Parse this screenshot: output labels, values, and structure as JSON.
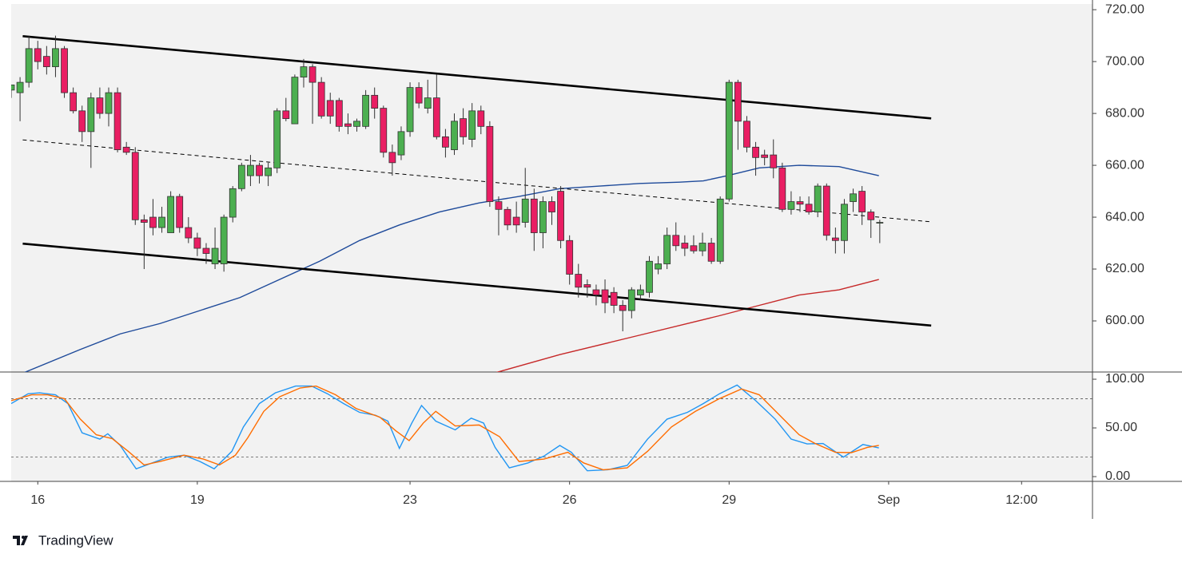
{
  "chart_data": [
    {
      "type": "candlestick",
      "open": [
        689,
        688,
        692,
        705,
        702,
        698,
        705,
        688,
        681,
        673,
        686,
        680,
        688,
        667,
        665,
        639,
        640,
        636,
        634,
        648,
        636,
        632,
        628,
        622,
        622,
        640,
        651,
        656,
        660,
        656,
        659,
        681,
        676,
        694,
        698,
        692,
        685,
        685,
        676,
        675,
        675,
        687,
        682,
        665,
        664,
        673,
        690,
        682,
        686,
        671,
        666,
        678,
        670,
        681,
        675,
        646,
        643,
        640,
        638,
        647,
        634,
        646,
        650,
        631,
        618,
        614,
        612,
        612,
        611,
        606,
        604,
        610,
        611,
        620,
        622,
        633,
        630,
        629,
        627,
        630,
        623,
        647,
        692,
        677,
        667,
        664,
        664,
        659,
        643,
        646,
        645,
        642,
        652,
        632,
        631,
        646,
        650,
        642,
        638
      ],
      "high": [
        691,
        694,
        710,
        708,
        706,
        710,
        706,
        690,
        683,
        688,
        690,
        690,
        690,
        669,
        667,
        641,
        647,
        644,
        650,
        649,
        640,
        634,
        630,
        636,
        641,
        652,
        661,
        664,
        661,
        661,
        682,
        686,
        695,
        701,
        699,
        694,
        688,
        686,
        680,
        678,
        689,
        690,
        683,
        668,
        675,
        692,
        692,
        693,
        695,
        674,
        680,
        682,
        684,
        683,
        677,
        648,
        644,
        646,
        659,
        651,
        648,
        648,
        652,
        633,
        622,
        616,
        614,
        616,
        613,
        608,
        613,
        614,
        625,
        625,
        636,
        638,
        633,
        633,
        634,
        632,
        648,
        693,
        693,
        679,
        669,
        666,
        670,
        661,
        650,
        648,
        648,
        653,
        653,
        636,
        647,
        651,
        652,
        643,
        639
      ],
      "low": [
        686,
        677,
        690,
        697,
        695,
        694,
        686,
        680,
        669,
        659,
        678,
        675,
        665,
        664,
        637,
        620,
        633,
        634,
        634,
        634,
        630,
        625,
        622,
        620,
        619,
        638,
        650,
        652,
        653,
        652,
        657,
        677,
        676,
        690,
        676,
        678,
        676,
        673,
        672,
        673,
        674,
        678,
        663,
        656,
        662,
        671,
        682,
        680,
        670,
        663,
        664,
        668,
        667,
        672,
        644,
        633,
        635,
        634,
        636,
        627,
        628,
        637,
        628,
        614,
        609,
        609,
        606,
        603,
        603,
        596,
        601,
        608,
        609,
        618,
        620,
        627,
        625,
        626,
        625,
        622,
        622,
        646,
        666,
        665,
        656,
        660,
        655,
        642,
        641,
        642,
        641,
        640,
        631,
        626,
        626,
        642,
        637,
        632,
        630
      ],
      "close": [
        691,
        692,
        705,
        700,
        698,
        705,
        688,
        681,
        673,
        686,
        680,
        688,
        666,
        665,
        639,
        638,
        636,
        640,
        648,
        636,
        632,
        628,
        626,
        628,
        640,
        651,
        660,
        660,
        656,
        659,
        681,
        678,
        694,
        698,
        692,
        679,
        679,
        675,
        675,
        677,
        687,
        682,
        665,
        661,
        673,
        690,
        684,
        686,
        671,
        667,
        677,
        671,
        681,
        675,
        646,
        643,
        637,
        637,
        647,
        634,
        646,
        642,
        631,
        618,
        613,
        613,
        610,
        607,
        606,
        604,
        612,
        612,
        623,
        622,
        633,
        629,
        628,
        627,
        630,
        623,
        647,
        692,
        677,
        667,
        663,
        663,
        659,
        643,
        646,
        645,
        642,
        652,
        633,
        631,
        645,
        649,
        642,
        639,
        638
      ],
      "up_color": "#4caf50",
      "down_color": "#e91e63",
      "xlim": [
        0,
        122
      ],
      "xticks": [
        {
          "value": 3,
          "label": "16"
        },
        {
          "value": 21,
          "label": "19"
        },
        {
          "value": 45,
          "label": "23"
        },
        {
          "value": 63,
          "label": "26"
        },
        {
          "value": 81,
          "label": "29"
        },
        {
          "value": 99,
          "label": "Sep"
        },
        {
          "value": 114,
          "label": "12:00"
        }
      ],
      "ylim": [
        580.3,
        722.2
      ],
      "yticks": [
        {
          "value": 600,
          "label": "600.00"
        },
        {
          "value": 620,
          "label": "620.00"
        },
        {
          "value": 640,
          "label": "640.00"
        },
        {
          "value": 660,
          "label": "660.00"
        },
        {
          "value": 680,
          "label": "680.00"
        },
        {
          "value": 700,
          "label": "700.00"
        },
        {
          "value": 720,
          "label": "720.00"
        }
      ],
      "moving_averages": [
        {
          "color": "#1e4a9a",
          "x": [
            1.4,
            7.8,
            12.3,
            16.8,
            21.3,
            25.8,
            30.3,
            34.8,
            39.3,
            43.8,
            48.3,
            52.8,
            57.3,
            61.9,
            66.4,
            70.9,
            75.4,
            78.1,
            80.8,
            84.4,
            88.9,
            93.4,
            97.9
          ],
          "values": [
            580,
            589,
            595,
            599,
            604,
            609,
            616,
            623,
            631,
            637,
            642,
            645.5,
            648,
            651,
            652,
            653,
            653.5,
            654,
            656,
            659,
            660,
            659.5,
            656
          ]
        },
        {
          "color": "#c62828",
          "x": [
            54.6,
            61.9,
            70.9,
            79.9,
            84.4,
            88.9,
            93.4,
            97.9
          ],
          "values": [
            580,
            587,
            594.5,
            602,
            606,
            610,
            612,
            616
          ]
        }
      ],
      "trendlines": [
        {
          "color": "#000000",
          "dashed": false,
          "x": [
            1.3,
            103.8
          ],
          "values": [
            709.8,
            678.1
          ]
        },
        {
          "color": "#000000",
          "dashed": true,
          "x": [
            1.3,
            103.8
          ],
          "values": [
            669.8,
            638.2
          ]
        },
        {
          "color": "#000000",
          "dashed": false,
          "x": [
            1.3,
            103.8
          ],
          "values": [
            629.8,
            598.2
          ]
        }
      ]
    },
    {
      "type": "line",
      "xlim": [
        0,
        122
      ],
      "ylim": [
        -4.9,
        107.4
      ],
      "yticks": [
        {
          "value": 0,
          "label": "0.00"
        },
        {
          "value": 50,
          "label": "50.00"
        },
        {
          "value": 100,
          "label": "100.00"
        }
      ],
      "bands": [
        20,
        80
      ],
      "series": [
        {
          "color": "#2196f3",
          "x": [
            0,
            1.9,
            3.2,
            5.0,
            6.4,
            8.0,
            10.0,
            10.9,
            12.3,
            14.1,
            15.9,
            17.7,
            19.5,
            21.3,
            22.9,
            24.9,
            26.2,
            28.0,
            29.8,
            32.1,
            33.9,
            35.7,
            37.5,
            39.3,
            41.1,
            42.5,
            43.8,
            45.2,
            46.3,
            47.9,
            50.1,
            51.9,
            53.3,
            54.6,
            56.2,
            58.3,
            60.1,
            61.9,
            63.2,
            65.0,
            67.3,
            69.5,
            71.8,
            74.0,
            76.3,
            78.1,
            79.9,
            81.9,
            84.0,
            86.2,
            88.0,
            89.8,
            91.6,
            93.9,
            96.1,
            97.9
          ],
          "values": [
            75,
            85,
            86,
            84,
            75,
            45,
            38.5,
            44,
            32,
            8,
            14,
            20,
            22,
            15.5,
            8,
            26,
            51,
            75,
            86,
            93,
            93,
            85,
            75,
            66,
            63,
            57,
            29,
            55,
            73,
            57,
            48,
            60,
            55,
            30,
            9,
            14,
            21,
            32,
            25,
            6,
            7,
            11.5,
            38.5,
            59,
            66,
            75,
            85,
            94,
            78,
            59,
            38.5,
            33.6,
            34,
            20,
            33,
            29.5
          ]
        },
        {
          "color": "#ff6d00",
          "x": [
            0,
            2.3,
            4.1,
            6.0,
            7.8,
            9.6,
            11.4,
            13.2,
            15.0,
            16.8,
            19.5,
            21.7,
            23.5,
            25.3,
            26.7,
            28.5,
            30.3,
            32.6,
            34.4,
            36.6,
            38.9,
            41.6,
            43.4,
            44.9,
            46.5,
            47.9,
            50.1,
            52.8,
            55.1,
            57.3,
            60.1,
            62.8,
            64.6,
            66.8,
            69.5,
            71.8,
            74.5,
            77.2,
            79.9,
            82.4,
            84.4,
            86.7,
            88.9,
            90.7,
            93.0,
            94.8,
            96.6,
            97.9
          ],
          "values": [
            78,
            84,
            84,
            80,
            59,
            43,
            39,
            26,
            12,
            15.5,
            22,
            18,
            12,
            22,
            40,
            67,
            82,
            91,
            93,
            84,
            70,
            61,
            47,
            37,
            55,
            67,
            52,
            53,
            41,
            15.5,
            18,
            25,
            14,
            7,
            9,
            26,
            51,
            67,
            80,
            90,
            84,
            63,
            43,
            34,
            25,
            24.6,
            30,
            32
          ]
        }
      ]
    }
  ],
  "footer": {
    "brand": "TradingView"
  }
}
